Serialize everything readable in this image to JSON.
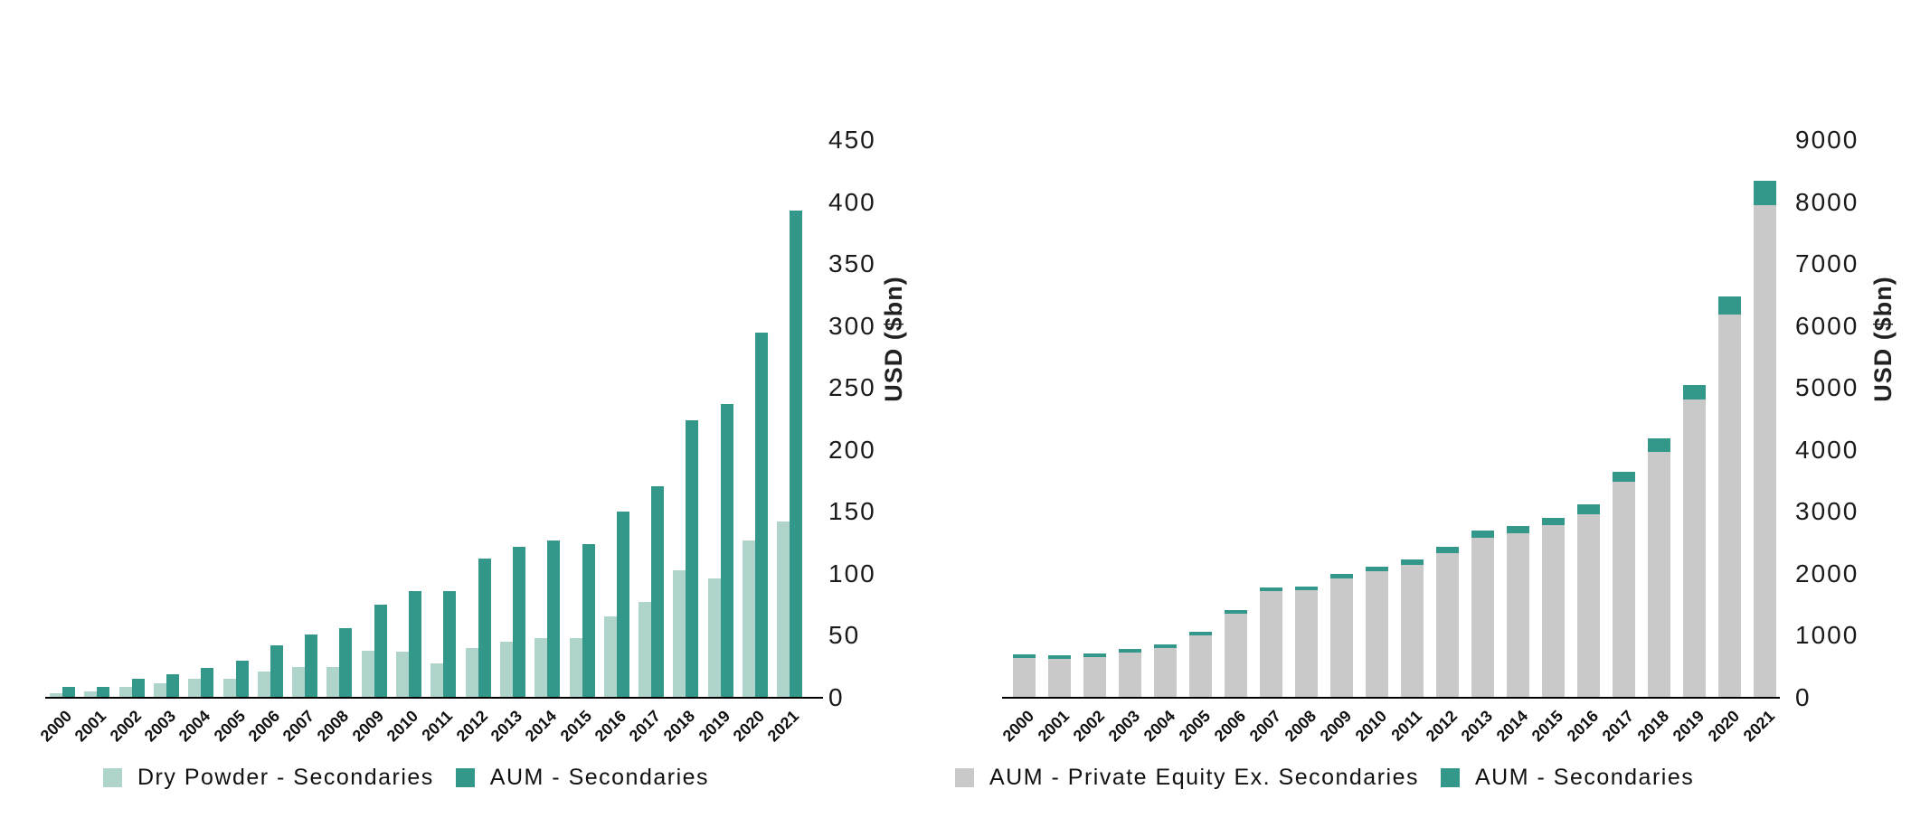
{
  "colors": {
    "dry_powder": "#aed4cb",
    "aum_secondaries": "#33978a",
    "pe_ex_secondaries": "#c9c9c9",
    "axis": "#000000",
    "text": "#1a1a1a"
  },
  "left_chart": {
    "y_axis_title": "USD ($bn)",
    "legend": [
      {
        "label": "Dry Powder - Secondaries",
        "color_key": "dry_powder"
      },
      {
        "label": "AUM - Secondaries",
        "color_key": "aum_secondaries"
      }
    ]
  },
  "right_chart": {
    "y_axis_title": "USD ($bn)",
    "legend": [
      {
        "label": "AUM - Private Equity Ex. Secondaries",
        "color_key": "pe_ex_secondaries"
      },
      {
        "label": "AUM - Secondaries",
        "color_key": "aum_secondaries"
      }
    ]
  },
  "chart_data": [
    {
      "type": "bar",
      "bar_mode": "grouped",
      "title": "",
      "categories": [
        "2000",
        "2001",
        "2002",
        "2003",
        "2004",
        "2005",
        "2006",
        "2007",
        "2008",
        "2009",
        "2010",
        "2011",
        "2012",
        "2013",
        "2014",
        "2015",
        "2016",
        "2017",
        "2018",
        "2019",
        "2020",
        "2021"
      ],
      "series": [
        {
          "name": "Dry Powder - Secondaries",
          "color_key": "dry_powder",
          "values": [
            4,
            5,
            9,
            12,
            15,
            15,
            21,
            25,
            25,
            38,
            37,
            28,
            40,
            45,
            48,
            48,
            66,
            77,
            103,
            96,
            127,
            142
          ]
        },
        {
          "name": "AUM - Secondaries",
          "color_key": "aum_secondaries",
          "values": [
            9,
            9,
            15,
            19,
            24,
            30,
            42,
            51,
            56,
            75,
            86,
            86,
            112,
            122,
            127,
            124,
            150,
            171,
            224,
            237,
            295,
            393
          ]
        }
      ],
      "xlabel": "",
      "ylabel": "USD ($bn)",
      "ylim": [
        0,
        450
      ],
      "y_ticks": [
        "0",
        "50",
        "100",
        "150",
        "200",
        "250",
        "300",
        "350",
        "400",
        "450"
      ],
      "grid": false,
      "legend_position": "bottom"
    },
    {
      "type": "bar",
      "bar_mode": "stacked",
      "title": "",
      "categories": [
        "2000",
        "2001",
        "2002",
        "2003",
        "2004",
        "2005",
        "2006",
        "2007",
        "2008",
        "2009",
        "2010",
        "2011",
        "2012",
        "2013",
        "2014",
        "2015",
        "2016",
        "2017",
        "2018",
        "2019",
        "2020",
        "2021"
      ],
      "series": [
        {
          "name": "AUM - Private Equity Ex. Secondaries",
          "color_key": "pe_ex_secondaries",
          "values": [
            640,
            625,
            660,
            725,
            795,
            1000,
            1350,
            1725,
            1730,
            1930,
            2035,
            2150,
            2330,
            2580,
            2650,
            2785,
            2965,
            3480,
            3965,
            4815,
            6180,
            7950
          ]
        },
        {
          "name": "AUM - Secondaries",
          "color_key": "aum_secondaries",
          "values": [
            9,
            9,
            15,
            19,
            24,
            30,
            42,
            51,
            56,
            75,
            86,
            86,
            112,
            122,
            127,
            124,
            150,
            171,
            224,
            237,
            295,
            393
          ]
        }
      ],
      "xlabel": "",
      "ylabel": "USD ($bn)",
      "ylim": [
        0,
        9000
      ],
      "y_ticks": [
        "0",
        "1000",
        "2000",
        "3000",
        "4000",
        "5000",
        "6000",
        "7000",
        "8000",
        "9000"
      ],
      "grid": false,
      "legend_position": "bottom"
    }
  ]
}
